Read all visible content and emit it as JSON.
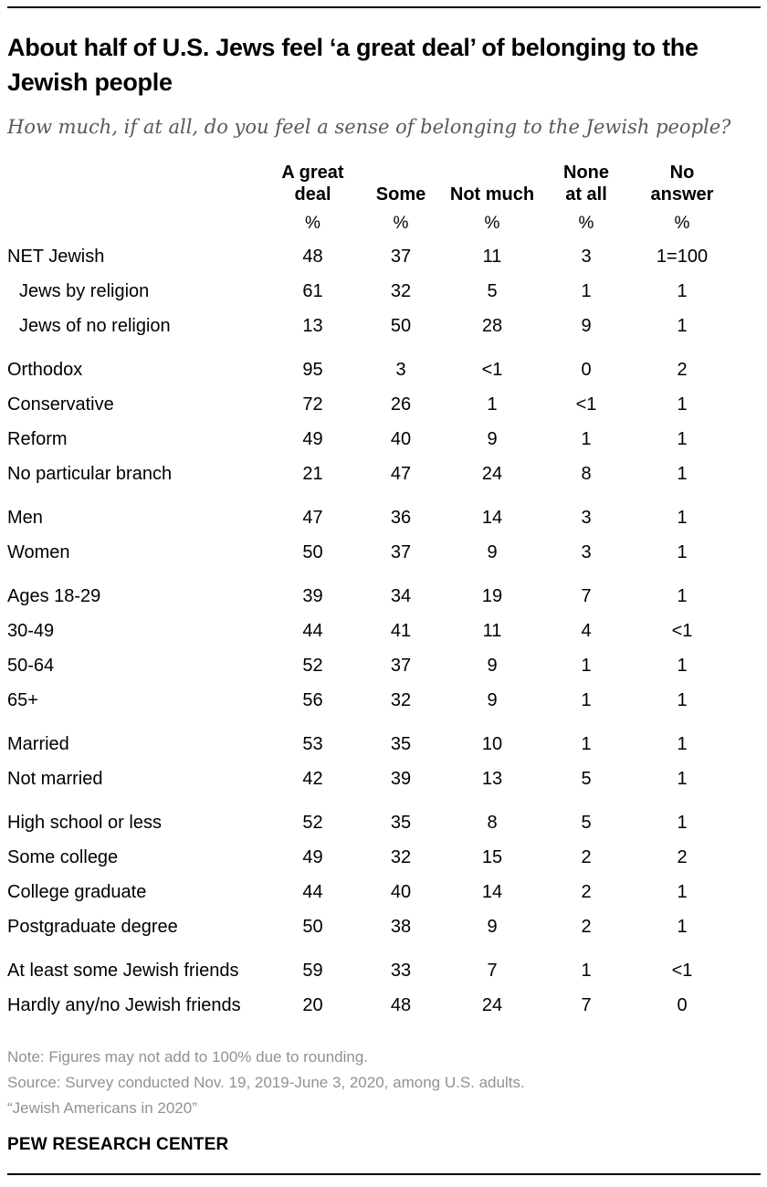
{
  "header": {
    "title": "About half of U.S. Jews feel ‘a great deal’ of belonging to the Jewish people",
    "subtitle": "How much, if at all, do you feel a sense of belonging to the Jewish people?"
  },
  "chart_data": {
    "type": "table",
    "columns": [
      "A great\ndeal",
      "Some",
      "Not much",
      "None\nat all",
      "No\nanswer"
    ],
    "percent_row": [
      "%",
      "%",
      "%",
      "%",
      "%"
    ],
    "rows": [
      {
        "label": "NET Jewish",
        "values": [
          "48",
          "37",
          "11",
          "3",
          "1=100"
        ]
      },
      {
        "label": "Jews by religion",
        "indent": true,
        "values": [
          "61",
          "32",
          "5",
          "1",
          "1"
        ]
      },
      {
        "label": "Jews of no religion",
        "indent": true,
        "values": [
          "13",
          "50",
          "28",
          "9",
          "1"
        ]
      },
      {
        "label": "Orthodox",
        "gap_before": true,
        "values": [
          "95",
          "3",
          "<1",
          "0",
          "2"
        ]
      },
      {
        "label": "Conservative",
        "values": [
          "72",
          "26",
          "1",
          "<1",
          "1"
        ]
      },
      {
        "label": "Reform",
        "values": [
          "49",
          "40",
          "9",
          "1",
          "1"
        ]
      },
      {
        "label": "No particular branch",
        "values": [
          "21",
          "47",
          "24",
          "8",
          "1"
        ]
      },
      {
        "label": "Men",
        "gap_before": true,
        "values": [
          "47",
          "36",
          "14",
          "3",
          "1"
        ]
      },
      {
        "label": "Women",
        "values": [
          "50",
          "37",
          "9",
          "3",
          "1"
        ]
      },
      {
        "label": "Ages 18-29",
        "gap_before": true,
        "values": [
          "39",
          "34",
          "19",
          "7",
          "1"
        ]
      },
      {
        "label": "30-49",
        "values": [
          "44",
          "41",
          "11",
          "4",
          "<1"
        ]
      },
      {
        "label": "50-64",
        "values": [
          "52",
          "37",
          "9",
          "1",
          "1"
        ]
      },
      {
        "label": "65+",
        "values": [
          "56",
          "32",
          "9",
          "1",
          "1"
        ]
      },
      {
        "label": "Married",
        "gap_before": true,
        "values": [
          "53",
          "35",
          "10",
          "1",
          "1"
        ]
      },
      {
        "label": "Not married",
        "values": [
          "42",
          "39",
          "13",
          "5",
          "1"
        ]
      },
      {
        "label": "High school or less",
        "gap_before": true,
        "values": [
          "52",
          "35",
          "8",
          "5",
          "1"
        ]
      },
      {
        "label": "Some college",
        "values": [
          "49",
          "32",
          "15",
          "2",
          "2"
        ]
      },
      {
        "label": "College graduate",
        "values": [
          "44",
          "40",
          "14",
          "2",
          "1"
        ]
      },
      {
        "label": "Postgraduate degree",
        "values": [
          "50",
          "38",
          "9",
          "2",
          "1"
        ]
      },
      {
        "label": "At least some Jewish friends",
        "gap_before": true,
        "values": [
          "59",
          "33",
          "7",
          "1",
          "<1"
        ]
      },
      {
        "label": "Hardly any/no Jewish friends",
        "values": [
          "20",
          "48",
          "24",
          "7",
          "0"
        ]
      }
    ]
  },
  "footer": {
    "note": "Note: Figures may not add to 100% due to rounding.",
    "source": "Source: Survey conducted Nov. 19, 2019-June 3, 2020, among U.S. adults.",
    "quote": "“Jewish Americans in 2020”",
    "brand": "PEW RESEARCH CENTER"
  },
  "colors": {
    "text": "#000000",
    "subtitle": "#58585b",
    "note_gray": "#919191",
    "rule": "#000000"
  }
}
